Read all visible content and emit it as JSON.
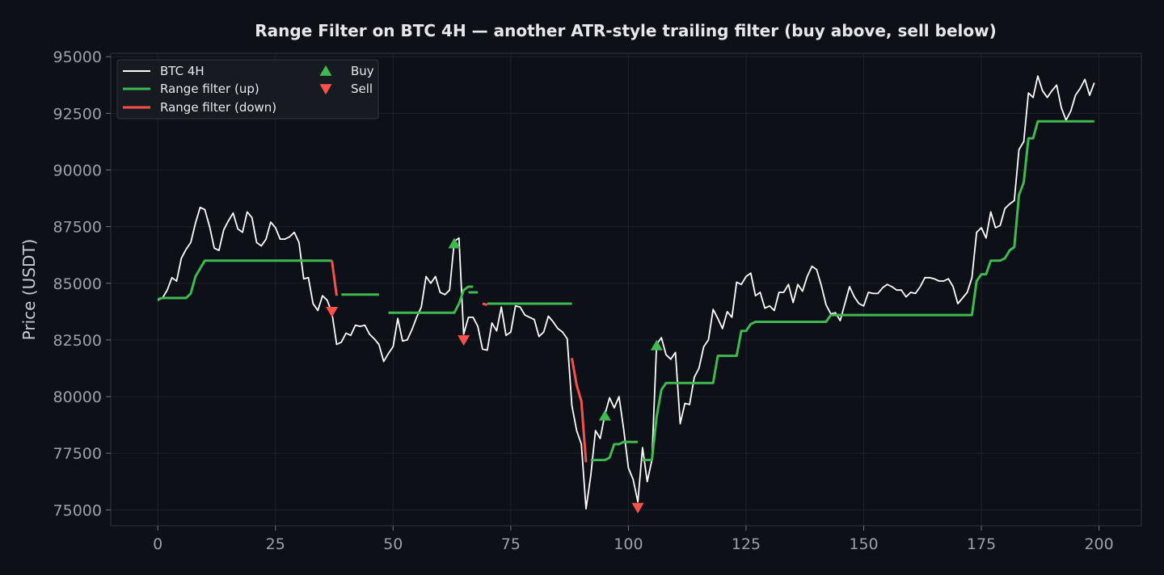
{
  "chart_data": {
    "type": "line",
    "title": "Range Filter on BTC 4H — another ATR-style trailing filter (buy above, sell below)",
    "xlabel": "",
    "ylabel": "Price (USDT)",
    "xlim": [
      -10,
      209
    ],
    "ylim": [
      74300,
      95150
    ],
    "xticks": [
      0,
      25,
      50,
      75,
      100,
      125,
      150,
      175,
      200
    ],
    "yticks": [
      75000,
      77500,
      80000,
      82500,
      85000,
      87500,
      90000,
      92500,
      95000
    ],
    "grid": true,
    "legend_placement": "top-left",
    "legend": [
      {
        "label": "BTC 4H",
        "kind": "line",
        "color": "#ffffff"
      },
      {
        "label": "Range filter (up)",
        "kind": "line",
        "color": "#3fb950"
      },
      {
        "label": "Range filter (down)",
        "kind": "line",
        "color": "#f85149"
      },
      {
        "label": "Buy",
        "kind": "marker-up",
        "color": "#3fb950"
      },
      {
        "label": "Sell",
        "kind": "marker-down",
        "color": "#f85149"
      }
    ],
    "series": [
      {
        "name": "BTC 4H",
        "color": "#ffffff",
        "x_start": 0,
        "values": [
          84250,
          84350,
          84700,
          85250,
          85100,
          86100,
          86500,
          86800,
          87650,
          88350,
          88250,
          87500,
          86550,
          86450,
          87350,
          87750,
          88100,
          87400,
          87250,
          88150,
          87900,
          86800,
          86650,
          86950,
          87700,
          87450,
          86950,
          86950,
          87050,
          87250,
          86800,
          85200,
          85250,
          84100,
          83800,
          84450,
          84250,
          83700,
          82300,
          82400,
          82800,
          82700,
          83150,
          83100,
          83150,
          82750,
          82550,
          82300,
          81550,
          81900,
          82200,
          83450,
          82450,
          82500,
          82950,
          83500,
          83950,
          85300,
          85000,
          85300,
          84600,
          84500,
          84700,
          86850,
          87000,
          82750,
          83500,
          83500,
          83100,
          82100,
          82050,
          83250,
          82900,
          83950,
          82700,
          82850,
          84000,
          83950,
          83600,
          83500,
          83400,
          82650,
          82850,
          83550,
          83300,
          83000,
          82850,
          82550,
          79600,
          78500,
          77900,
          75050,
          76500,
          78500,
          78150,
          79200,
          79950,
          79500,
          80000,
          78550,
          76850,
          76350,
          75350,
          77750,
          76250,
          77200,
          82300,
          82600,
          81850,
          81650,
          81950,
          78800,
          79700,
          79650,
          80850,
          81250,
          82200,
          82500,
          83850,
          83450,
          83000,
          83750,
          83500,
          85050,
          84950,
          85300,
          85450,
          84450,
          84600,
          83900,
          84000,
          83800,
          84600,
          84600,
          84950,
          84150,
          84950,
          84650,
          85300,
          85750,
          85600,
          84900,
          84050,
          83650,
          83700,
          83350,
          84100,
          84850,
          84400,
          84100,
          84000,
          84600,
          84550,
          84550,
          84800,
          84950,
          84850,
          84700,
          84700,
          84400,
          84600,
          84550,
          84850,
          85250,
          85250,
          85200,
          85100,
          85100,
          85200,
          84850,
          84100,
          84350,
          84600,
          85250,
          87250,
          87450,
          87000,
          88150,
          87450,
          87550,
          88300,
          88500,
          88650,
          90900,
          91250,
          93400,
          93200,
          94150,
          93500,
          93200,
          93500,
          93750,
          92750,
          92200,
          92600,
          93300,
          93600,
          94000,
          93300,
          93850
        ]
      },
      {
        "name": "Range filter (up)",
        "color": "#3fb950",
        "segments": [
          {
            "x_start": 0,
            "values": [
              84300,
              84350,
              84350,
              84350,
              84350,
              84350,
              84350,
              84550,
              85300,
              85650,
              86000,
              86000,
              86000,
              86000,
              86000,
              86000,
              86000,
              86000,
              86000,
              86000,
              86000,
              86000,
              86000,
              86000,
              86000,
              86000,
              86000,
              86000,
              86000,
              86000,
              86000,
              86000,
              86000,
              86000,
              86000,
              86000,
              86000,
              86000
            ]
          },
          {
            "x_start": 39,
            "values": [
              84500,
              84500,
              84500,
              84500,
              84500,
              84500,
              84500,
              84500,
              84500
            ]
          },
          {
            "x_start": 49,
            "values": [
              83700,
              83700,
              83700,
              83700,
              83700,
              83700,
              83700,
              83700,
              83700,
              83700,
              83700,
              83700,
              83700,
              83700,
              83700,
              84100,
              84700,
              84850,
              84850
            ]
          },
          {
            "x_start": 66,
            "values": [
              84600,
              84600,
              84600
            ]
          },
          {
            "x_start": 70,
            "values": [
              84100,
              84100,
              84100,
              84100,
              84100,
              84100,
              84100,
              84100,
              84100,
              84100,
              84100,
              84100,
              84100,
              84100,
              84100,
              84100,
              84100,
              84100,
              84100
            ]
          },
          {
            "x_start": 92,
            "values": [
              77200,
              77200,
              77200,
              77200,
              77300,
              77900,
              77900,
              78000,
              78000,
              78000,
              78000
            ]
          },
          {
            "x_start": 103,
            "values": [
              77200,
              77200,
              77200,
              79100,
              80300,
              80600,
              80600,
              80600,
              80600,
              80600,
              80600,
              80600,
              80600,
              80600,
              80600,
              80600,
              81800,
              81800,
              81800,
              81800,
              81800,
              82900,
              82900,
              83200,
              83300,
              83300,
              83300,
              83300,
              83300,
              83300,
              83300,
              83300,
              83300,
              83300,
              83300,
              83300,
              83300,
              83300,
              83300,
              83300,
              83600,
              83600,
              83600,
              83600,
              83600,
              83600,
              83600,
              83600,
              83600,
              83600,
              83600,
              83600,
              83600,
              83600,
              83600,
              83600,
              83600,
              83600,
              83600,
              83600,
              83600,
              83600,
              83600,
              83600,
              83600,
              83600,
              83600,
              83600,
              83600,
              83600,
              83600,
              85100,
              85400,
              85400,
              86000,
              86000,
              86000,
              86100,
              86450,
              86600,
              88900,
              89450,
              91400,
              91400,
              92150,
              92150,
              92150,
              92150,
              92150,
              92150,
              92150,
              92150,
              92150,
              92150,
              92150,
              92150,
              92150
            ]
          }
        ]
      },
      {
        "name": "Range filter (down)",
        "color": "#f85149",
        "segments": [
          {
            "x_start": 37,
            "values": [
              86000,
              84450
            ]
          },
          {
            "x_start": 69,
            "values": [
              84100,
              84050
            ]
          },
          {
            "x_start": 88,
            "values": [
              81700,
              80500,
              79800,
              77100
            ]
          }
        ]
      }
    ],
    "buy_signals": [
      {
        "x": 63,
        "y": 86750
      },
      {
        "x": 95,
        "y": 79150
      },
      {
        "x": 106,
        "y": 82250
      }
    ],
    "sell_signals": [
      {
        "x": 37,
        "y": 83750
      },
      {
        "x": 65,
        "y": 82500
      },
      {
        "x": 102,
        "y": 75100
      }
    ]
  }
}
